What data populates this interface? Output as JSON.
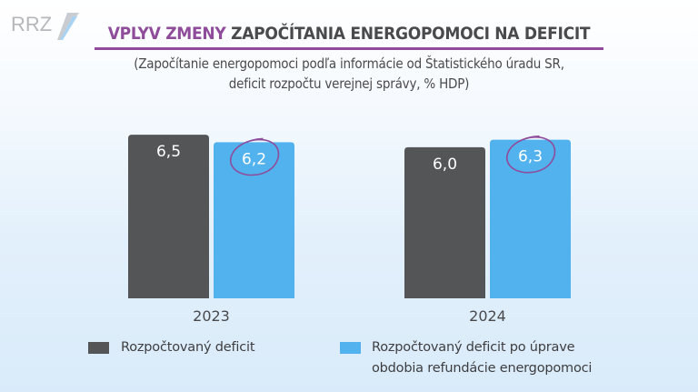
{
  "logo_text": "RRZ",
  "title": {
    "highlight": "VPLYV ZMENY",
    "rest": "ZAPOČÍTANIA ENERGOPOMOCI NA DEFICIT"
  },
  "subtitle_lines": [
    "(Započítanie energopomoci podľa informácie od Štatistického úradu SR,",
    "deficit rozpočtu verejnej správy, % HDP)"
  ],
  "colors": {
    "series1": "#545557",
    "series2": "#52b2ee",
    "accent": "#8e4c9a"
  },
  "chart_data": {
    "type": "bar",
    "title": "VPLYV ZMENY ZAPOČÍTANIA ENERGOPOMOCI NA DEFICIT",
    "categories": [
      "2023",
      "2024"
    ],
    "series": [
      {
        "name": "Rozpočtovaný deficit",
        "values": [
          6.5,
          6.0
        ],
        "labels": [
          "6,5",
          "6,0"
        ]
      },
      {
        "name": "Rozpočtovaný deficit po úprave obdobia refundácie energopomoci",
        "values": [
          6.2,
          6.3
        ],
        "labels": [
          "6,2",
          "6,3"
        ]
      }
    ],
    "xlabel": "",
    "ylabel": "% HDP",
    "ylim": [
      0,
      11.85
    ],
    "grid": false,
    "legend": "bottom",
    "annotations": [
      "circled: 6,2",
      "circled: 6,3"
    ]
  },
  "legend": {
    "item1": "Rozpočtovaný deficit",
    "item2_lines": [
      "Rozpočtovaný deficit po úprave",
      "obdobia refundácie energopomoci"
    ]
  }
}
